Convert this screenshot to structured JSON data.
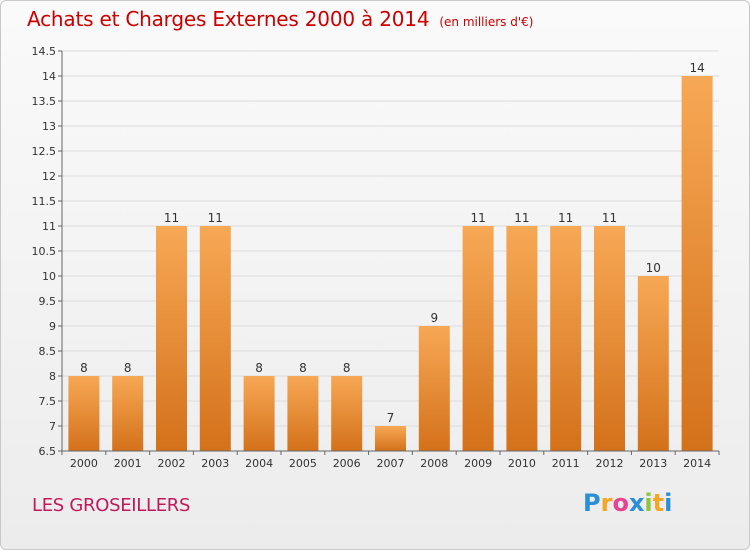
{
  "header": {
    "title": "Achats et Charges Externes 2000 à 2014",
    "unit": "(en milliers d'€)"
  },
  "footer": {
    "commune": "LES GROSEILLERS",
    "brand": "Proxiti",
    "brand_letters": [
      {
        "char": "P",
        "color": "#2a8fd6"
      },
      {
        "char": "r",
        "color": "#f5a623"
      },
      {
        "char": "o",
        "color": "#e84393"
      },
      {
        "char": "x",
        "color": "#2a8fd6"
      },
      {
        "char": "i",
        "color": "#8cc63f"
      },
      {
        "char": "t",
        "color": "#f5a623"
      },
      {
        "char": "i",
        "color": "#2a8fd6"
      }
    ]
  },
  "colors": {
    "title": "#cc0000",
    "commune": "#c2185b",
    "bar_top": "#f7a855",
    "bar_bottom": "#d4711a",
    "grid": "#dcdcdc",
    "axis": "#666666"
  },
  "chart_data": {
    "type": "bar",
    "title": "Achats et Charges Externes 2000 à 2014",
    "unit": "(en milliers d'€)",
    "categories": [
      "2000",
      "2001",
      "2002",
      "2003",
      "2004",
      "2005",
      "2006",
      "2007",
      "2008",
      "2009",
      "2010",
      "2011",
      "2012",
      "2013",
      "2014"
    ],
    "values": [
      8,
      8,
      11,
      11,
      8,
      8,
      8,
      7,
      9,
      11,
      11,
      11,
      11,
      10,
      14
    ],
    "ylim": [
      6.5,
      14.5
    ],
    "yticks": [
      6.5,
      7,
      7.5,
      8,
      8.5,
      9,
      9.5,
      10,
      10.5,
      11,
      11.5,
      12,
      12.5,
      13,
      13.5,
      14,
      14.5
    ],
    "ytick_labels": [
      "6.5",
      "7",
      "7.5",
      "8",
      "8.5",
      "9",
      "9.5",
      "10",
      "10.5",
      "11",
      "11.5",
      "12",
      "12.5",
      "13",
      "13.5",
      "14",
      "14.5"
    ],
    "grid": true,
    "legend": "none"
  }
}
